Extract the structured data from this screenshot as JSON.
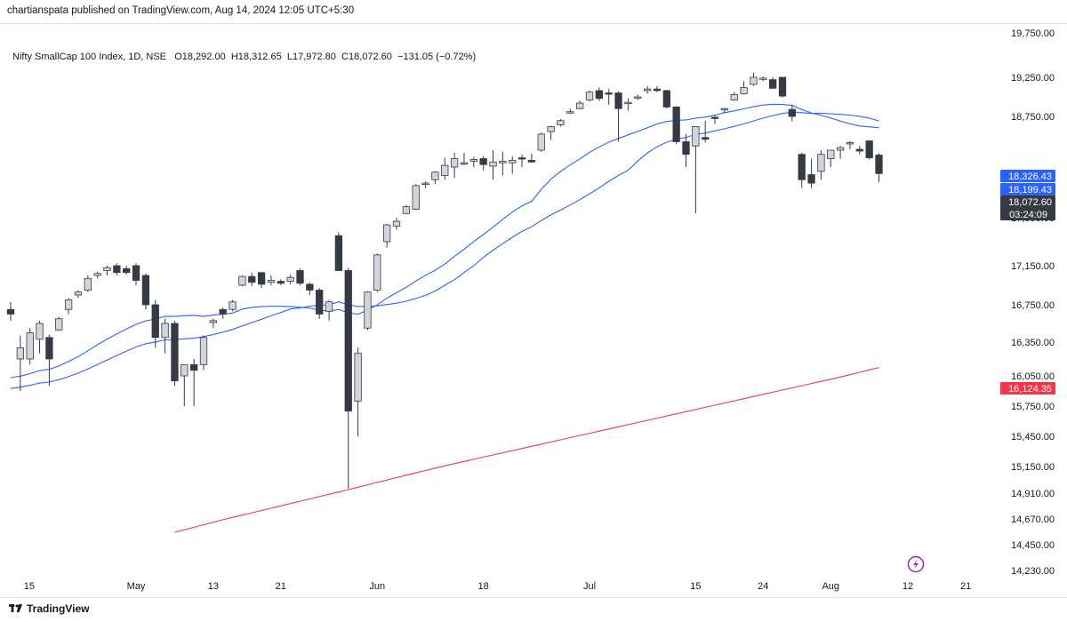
{
  "publisher_line": "chartianspata published on TradingView.com, Aug 14, 2024 12:05 UTC+5:30",
  "legend": {
    "symbol": "Nifty SmallCap 100 Index, 1D, NSE",
    "open": "O18,292.00",
    "high": "H18,312.65",
    "low": "L17,972.80",
    "close": "C18,072.60",
    "change": "−131.05 (−0.72%)"
  },
  "footer_brand": "TradingView",
  "colors": {
    "up_fill": "#d1d4dc",
    "down_fill": "#363a45",
    "wick": "#363a45",
    "ma_fast": "#2962ff",
    "ma_mid": "#2962ff",
    "ma_slow": "#f23645",
    "label_blue": "#2962ff",
    "label_dark": "#363a45",
    "label_red": "#f23645"
  },
  "chart_data": {
    "type": "candlestick",
    "y_axis_ticks": [
      "19,750.00",
      "19,250.00",
      "18,750.00",
      "17,550.00",
      "17,150.00",
      "16,750.00",
      "16,350.00",
      "16,050.00",
      "15,750.00",
      "15,450.00",
      "15,150.00",
      "14,910.00",
      "14,670.00",
      "14,450.00",
      "14,230.00"
    ],
    "x_axis_ticks": [
      "15",
      "May",
      "13",
      "21",
      "Jun",
      "18",
      "Jul",
      "15",
      "24",
      "Aug",
      "12",
      "21"
    ],
    "price_labels": [
      {
        "text": "18,326.43",
        "value": 18326.43,
        "color": "blue"
      },
      {
        "text": "18,199.43",
        "value": 18199.43,
        "color": "blue"
      },
      {
        "text": "18,072.60",
        "value": 18072.6,
        "color": "dark",
        "sub": "03:24:09"
      },
      {
        "text": "16,124.35",
        "value": 16124.35,
        "color": "red"
      }
    ],
    "candles": [
      {
        "o": 16700,
        "h": 16780,
        "l": 16580,
        "c": 16650
      },
      {
        "o": 16200,
        "h": 16420,
        "l": 15900,
        "c": 16300
      },
      {
        "o": 16200,
        "h": 16500,
        "l": 16150,
        "c": 16450
      },
      {
        "o": 16380,
        "h": 16580,
        "l": 16250,
        "c": 16550
      },
      {
        "o": 16400,
        "h": 16430,
        "l": 15950,
        "c": 16200
      },
      {
        "o": 16480,
        "h": 16620,
        "l": 16470,
        "c": 16600
      },
      {
        "o": 16700,
        "h": 16820,
        "l": 16650,
        "c": 16800
      },
      {
        "o": 16850,
        "h": 16900,
        "l": 16820,
        "c": 16880
      },
      {
        "o": 16900,
        "h": 17050,
        "l": 16880,
        "c": 17020
      },
      {
        "o": 17050,
        "h": 17090,
        "l": 17020,
        "c": 17070
      },
      {
        "o": 17100,
        "h": 17150,
        "l": 17050,
        "c": 17130
      },
      {
        "o": 17150,
        "h": 17170,
        "l": 17050,
        "c": 17080
      },
      {
        "o": 17120,
        "h": 17150,
        "l": 17060,
        "c": 17080
      },
      {
        "o": 17150,
        "h": 17170,
        "l": 16950,
        "c": 17000
      },
      {
        "o": 17050,
        "h": 17070,
        "l": 16700,
        "c": 16750
      },
      {
        "o": 16750,
        "h": 16800,
        "l": 16300,
        "c": 16400
      },
      {
        "o": 16400,
        "h": 16600,
        "l": 16250,
        "c": 16550
      },
      {
        "o": 16550,
        "h": 16580,
        "l": 15950,
        "c": 16000
      },
      {
        "o": 16050,
        "h": 16150,
        "l": 15750,
        "c": 16150
      },
      {
        "o": 16150,
        "h": 16200,
        "l": 15750,
        "c": 16100
      },
      {
        "o": 16150,
        "h": 16420,
        "l": 16100,
        "c": 16400
      },
      {
        "o": 16560,
        "h": 16600,
        "l": 16500,
        "c": 16580
      },
      {
        "o": 16700,
        "h": 16720,
        "l": 16600,
        "c": 16650
      },
      {
        "o": 16700,
        "h": 16800,
        "l": 16680,
        "c": 16780
      },
      {
        "o": 16950,
        "h": 17050,
        "l": 16940,
        "c": 17040
      },
      {
        "o": 17040,
        "h": 17080,
        "l": 16940,
        "c": 16980
      },
      {
        "o": 17080,
        "h": 17080,
        "l": 16920,
        "c": 16960
      },
      {
        "o": 16980,
        "h": 17050,
        "l": 16950,
        "c": 17000
      },
      {
        "o": 16990,
        "h": 17010,
        "l": 16950,
        "c": 16970
      },
      {
        "o": 16990,
        "h": 17060,
        "l": 16960,
        "c": 17030
      },
      {
        "o": 17100,
        "h": 17120,
        "l": 16950,
        "c": 16970
      },
      {
        "o": 16960,
        "h": 16980,
        "l": 16850,
        "c": 16900
      },
      {
        "o": 16900,
        "h": 16920,
        "l": 16600,
        "c": 16650
      },
      {
        "o": 16680,
        "h": 16800,
        "l": 16580,
        "c": 16780
      },
      {
        "o": 17400,
        "h": 17430,
        "l": 17100,
        "c": 17100
      },
      {
        "o": 17100,
        "h": 17130,
        "l": 14950,
        "c": 15700
      },
      {
        "o": 15800,
        "h": 16300,
        "l": 15450,
        "c": 16250
      },
      {
        "o": 16500,
        "h": 16890,
        "l": 16480,
        "c": 16880
      },
      {
        "o": 16900,
        "h": 17250,
        "l": 16880,
        "c": 17240
      },
      {
        "o": 17350,
        "h": 17500,
        "l": 17300,
        "c": 17490
      },
      {
        "o": 17480,
        "h": 17550,
        "l": 17450,
        "c": 17520
      },
      {
        "o": 17600,
        "h": 17700,
        "l": 17590,
        "c": 17680
      },
      {
        "o": 17650,
        "h": 17950,
        "l": 17640,
        "c": 17930
      },
      {
        "o": 17950,
        "h": 17980,
        "l": 17900,
        "c": 17960
      },
      {
        "o": 18000,
        "h": 18100,
        "l": 17950,
        "c": 18090
      },
      {
        "o": 18050,
        "h": 18260,
        "l": 18000,
        "c": 18170
      },
      {
        "o": 18150,
        "h": 18320,
        "l": 18020,
        "c": 18250
      },
      {
        "o": 18200,
        "h": 18320,
        "l": 18170,
        "c": 18200
      },
      {
        "o": 18220,
        "h": 18270,
        "l": 18150,
        "c": 18240
      },
      {
        "o": 18250,
        "h": 18280,
        "l": 18110,
        "c": 18180
      },
      {
        "o": 18160,
        "h": 18350,
        "l": 18000,
        "c": 18210
      },
      {
        "o": 18200,
        "h": 18330,
        "l": 18050,
        "c": 18220
      },
      {
        "o": 18200,
        "h": 18280,
        "l": 18070,
        "c": 18230
      },
      {
        "o": 18260,
        "h": 18300,
        "l": 18150,
        "c": 18250
      },
      {
        "o": 18230,
        "h": 18310,
        "l": 18200,
        "c": 18210
      },
      {
        "o": 18350,
        "h": 18560,
        "l": 18330,
        "c": 18540
      },
      {
        "o": 18570,
        "h": 18640,
        "l": 18470,
        "c": 18630
      },
      {
        "o": 18650,
        "h": 18720,
        "l": 18630,
        "c": 18700
      },
      {
        "o": 18800,
        "h": 18850,
        "l": 18780,
        "c": 18810
      },
      {
        "o": 18850,
        "h": 18950,
        "l": 18840,
        "c": 18920
      },
      {
        "o": 18960,
        "h": 19080,
        "l": 18940,
        "c": 19060
      },
      {
        "o": 19080,
        "h": 19120,
        "l": 18950,
        "c": 18980
      },
      {
        "o": 19050,
        "h": 19100,
        "l": 18900,
        "c": 19040
      },
      {
        "o": 19050,
        "h": 19070,
        "l": 18450,
        "c": 18850
      },
      {
        "o": 18920,
        "h": 18980,
        "l": 18820,
        "c": 18930
      },
      {
        "o": 19000,
        "h": 19030,
        "l": 18960,
        "c": 19000
      },
      {
        "o": 19080,
        "h": 19140,
        "l": 19040,
        "c": 19100
      },
      {
        "o": 19100,
        "h": 19140,
        "l": 19060,
        "c": 19080
      },
      {
        "o": 19080,
        "h": 19090,
        "l": 18850,
        "c": 18870
      },
      {
        "o": 18870,
        "h": 18880,
        "l": 18420,
        "c": 18450
      },
      {
        "o": 18450,
        "h": 18540,
        "l": 18150,
        "c": 18300
      },
      {
        "o": 18400,
        "h": 18630,
        "l": 17600,
        "c": 18630
      },
      {
        "o": 18500,
        "h": 18700,
        "l": 18440,
        "c": 18480
      },
      {
        "o": 18740,
        "h": 18760,
        "l": 18660,
        "c": 18730
      },
      {
        "o": 18840,
        "h": 18860,
        "l": 18800,
        "c": 18850
      },
      {
        "o": 18960,
        "h": 19060,
        "l": 18950,
        "c": 19030
      },
      {
        "o": 19040,
        "h": 19200,
        "l": 19030,
        "c": 19120
      },
      {
        "o": 19160,
        "h": 19300,
        "l": 19140,
        "c": 19250
      },
      {
        "o": 19230,
        "h": 19260,
        "l": 19200,
        "c": 19240
      },
      {
        "o": 19220,
        "h": 19250,
        "l": 19100,
        "c": 19110
      },
      {
        "o": 19250,
        "h": 19250,
        "l": 18990,
        "c": 19010
      },
      {
        "o": 18840,
        "h": 18900,
        "l": 18690,
        "c": 18750
      },
      {
        "o": 18300,
        "h": 18320,
        "l": 17900,
        "c": 18000
      },
      {
        "o": 18060,
        "h": 18250,
        "l": 17900,
        "c": 17960
      },
      {
        "o": 18100,
        "h": 18350,
        "l": 18000,
        "c": 18300
      },
      {
        "o": 18250,
        "h": 18350,
        "l": 18150,
        "c": 18350
      },
      {
        "o": 18350,
        "h": 18400,
        "l": 18250,
        "c": 18380
      },
      {
        "o": 18430,
        "h": 18460,
        "l": 18360,
        "c": 18440
      },
      {
        "o": 18360,
        "h": 18400,
        "l": 18300,
        "c": 18340
      },
      {
        "o": 18460,
        "h": 18470,
        "l": 18240,
        "c": 18260
      },
      {
        "o": 18292,
        "h": 18312.65,
        "l": 17972.8,
        "c": 18072.6
      }
    ]
  }
}
